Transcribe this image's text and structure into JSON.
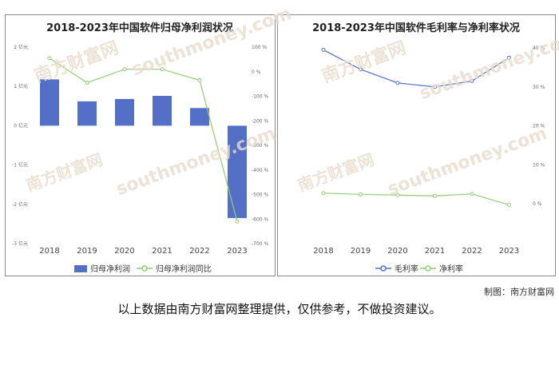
{
  "charts": [
    {
      "title": "2018-2023年中国软件归母净利润状况",
      "left_ticks": [
        "2 亿元",
        "1 亿元",
        "0 亿元",
        "-1 亿元",
        "-2 亿元",
        "-3 亿元"
      ],
      "right_ticks": [
        "100 %",
        "0 %",
        "-100 %",
        "-200 %",
        "-300 %",
        "-400 %",
        "-500 %",
        "-600 %",
        "-700 %"
      ],
      "legend": [
        "归母净利润",
        "归母净利润同比"
      ]
    },
    {
      "title": "2018-2023年中国软件毛利率与净利率状况",
      "right_ticks": [
        "40 %",
        "30 %",
        "20 %",
        "10 %",
        "0 %"
      ],
      "legend": [
        "毛利率",
        "净利率"
      ]
    }
  ],
  "chart_data": [
    {
      "type": "bar",
      "title": "2018-2023年中国软件归母净利润状况",
      "categories": [
        "2018",
        "2019",
        "2020",
        "2021",
        "2022",
        "2023"
      ],
      "series": [
        {
          "name": "归母净利润",
          "type": "bar",
          "axis": "left",
          "unit": "亿元",
          "values": [
            1.18,
            0.62,
            0.68,
            0.76,
            0.45,
            -2.35
          ]
        },
        {
          "name": "归母净利润同比",
          "type": "line",
          "axis": "right",
          "unit": "%",
          "values": [
            55,
            -45,
            10,
            10,
            -35,
            -610
          ]
        }
      ],
      "left_ylim": [
        -3,
        2
      ],
      "right_ylim": [
        -700,
        100
      ],
      "colors": {
        "bar": "#5470c6",
        "line": "#91cc75"
      },
      "legend_position": "bottom"
    },
    {
      "type": "line",
      "title": "2018-2023年中国软件毛利率与净利率状况",
      "categories": [
        "2018",
        "2019",
        "2020",
        "2021",
        "2022",
        "2023"
      ],
      "series": [
        {
          "name": "毛利率",
          "unit": "%",
          "values": [
            39.5,
            34.5,
            31.0,
            30.0,
            31.5,
            37.5
          ]
        },
        {
          "name": "净利率",
          "unit": "%",
          "values": [
            2.7,
            2.4,
            2.2,
            2.0,
            2.5,
            -0.3
          ]
        }
      ],
      "ylim": [
        0,
        40
      ],
      "colors": {
        "毛利率": "#5470c6",
        "净利率": "#91cc75"
      },
      "legend_position": "bottom"
    }
  ],
  "watermark": {
    "cn": "南方财富网",
    "en": "southmoney.com"
  },
  "credit": "制图：南方财富网",
  "disclaimer": "以上数据由南方财富网整理提供，仅供参考，不做投资建议。"
}
